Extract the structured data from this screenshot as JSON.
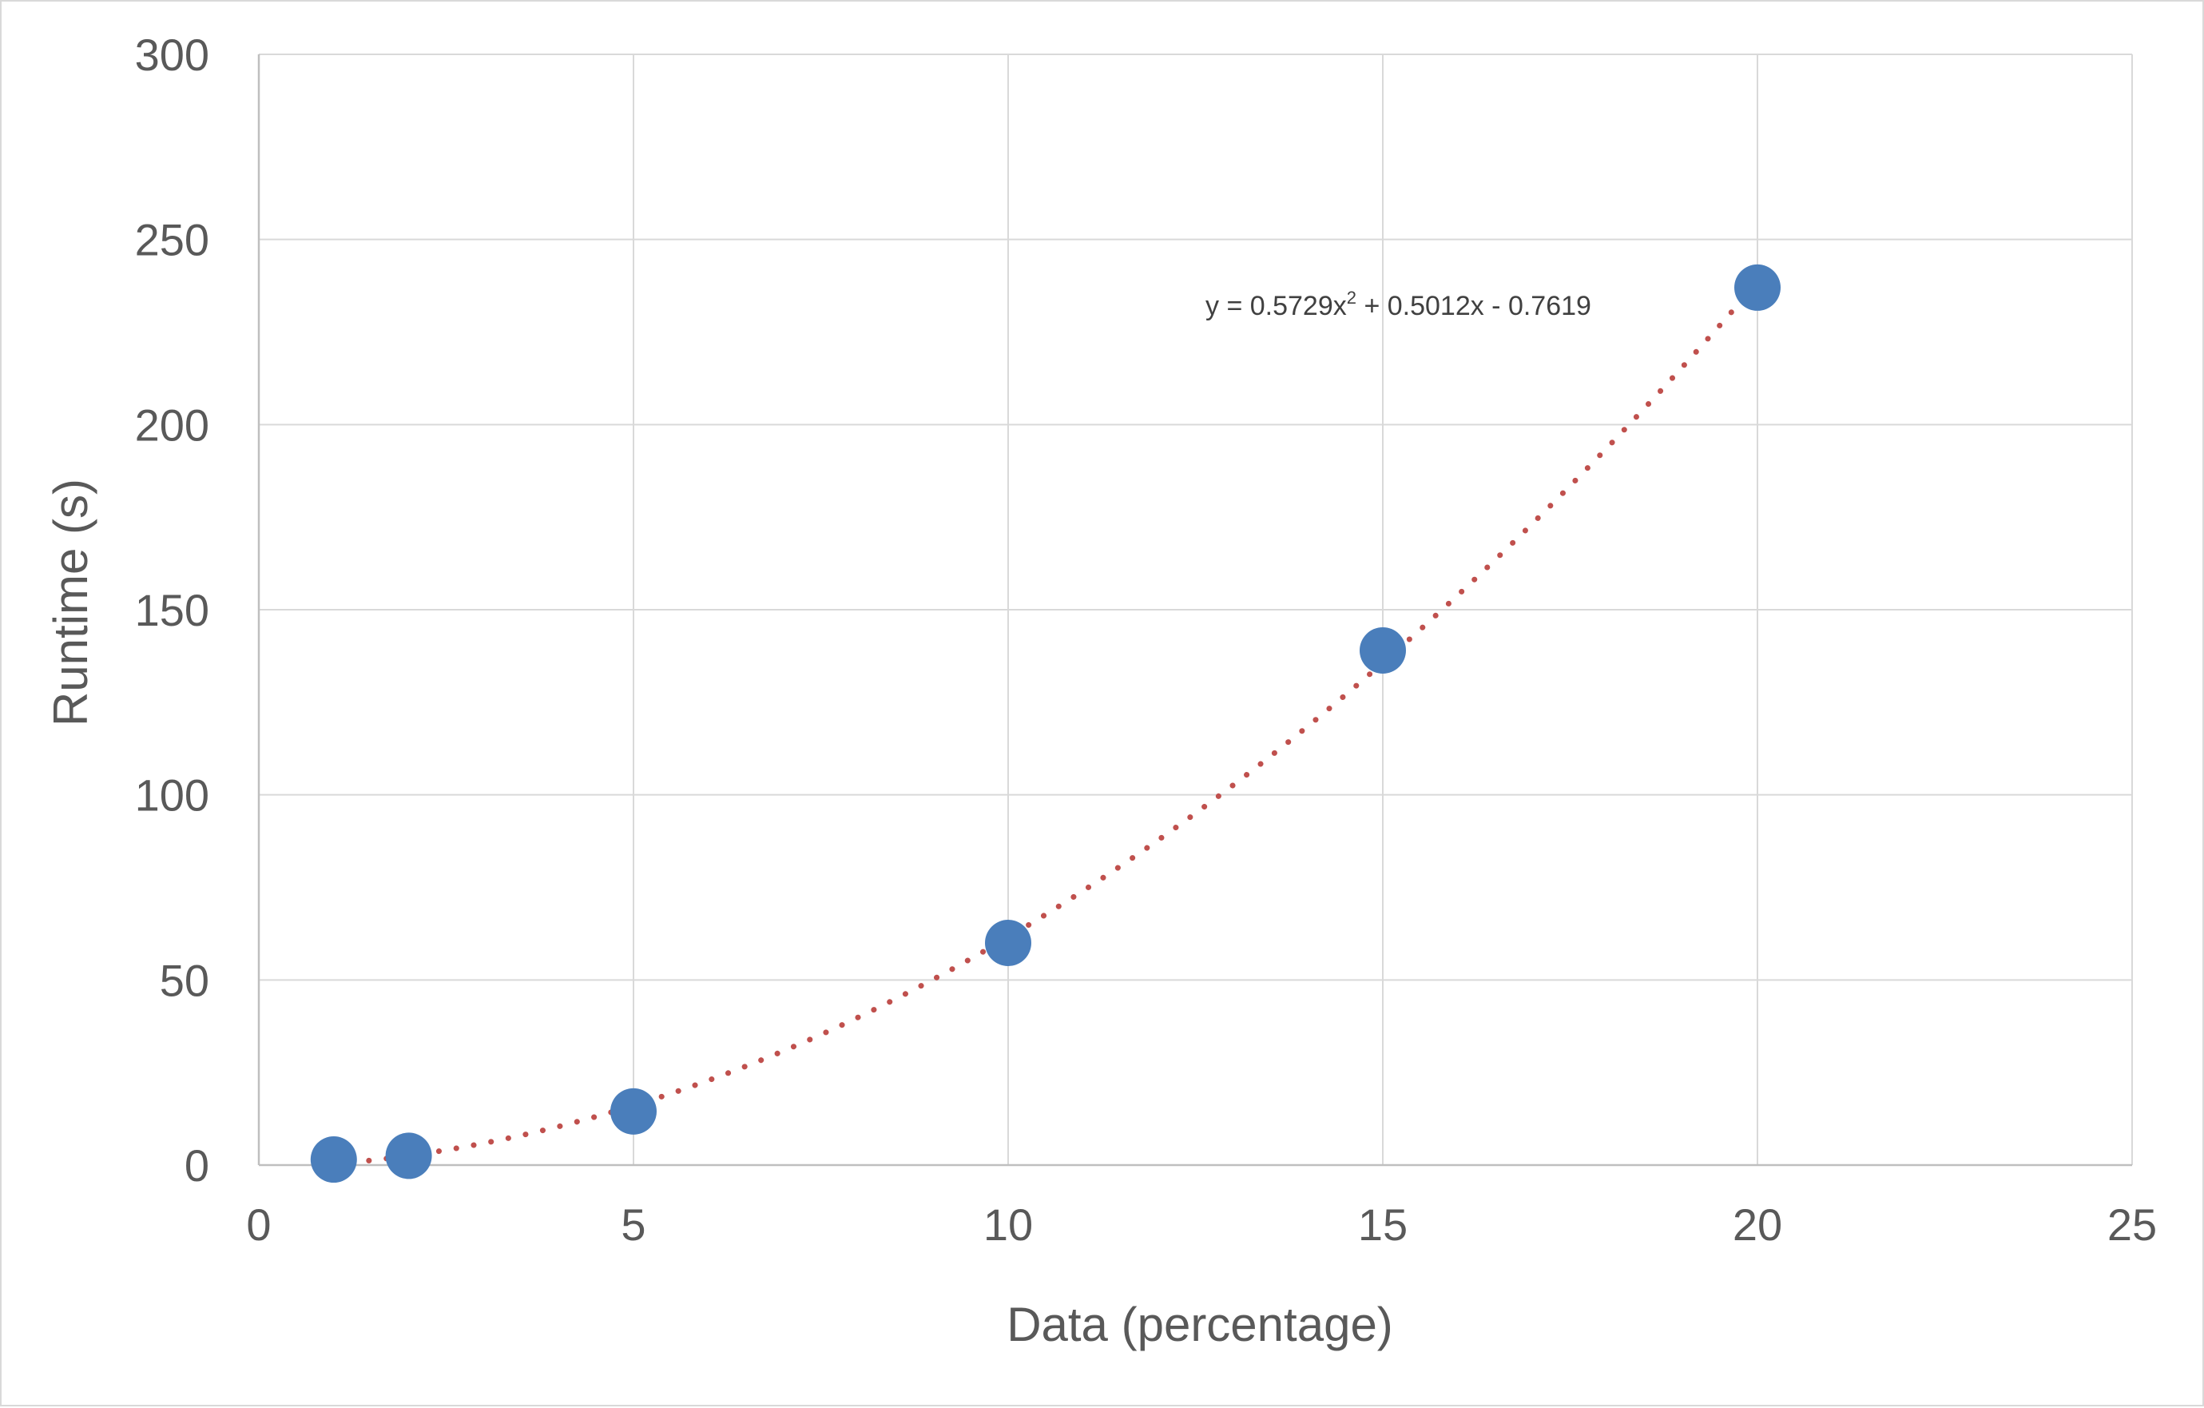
{
  "chart_data": {
    "type": "scatter",
    "title": "",
    "xlabel": "Data (percentage)",
    "ylabel": "Runtime (s)",
    "xlim": [
      0,
      25
    ],
    "ylim": [
      0,
      300
    ],
    "xticks": [
      0,
      5,
      10,
      15,
      20,
      25
    ],
    "yticks": [
      0,
      50,
      100,
      150,
      200,
      250,
      300
    ],
    "grid": true,
    "legend": "none",
    "series": [
      {
        "points": [
          {
            "x": 1,
            "y": 1.5
          },
          {
            "x": 2,
            "y": 2.5
          },
          {
            "x": 5,
            "y": 14.5
          },
          {
            "x": 10,
            "y": 60
          },
          {
            "x": 15,
            "y": 139
          },
          {
            "x": 20,
            "y": 237
          }
        ],
        "color": "#4a7ebb"
      }
    ],
    "trendline": {
      "type": "polynomial",
      "order": 2,
      "coefficients": {
        "a": 0.5729,
        "b": 0.5012,
        "c": -0.7619
      },
      "x_range": [
        1,
        20
      ],
      "color": "#c0504d",
      "style": "dotted",
      "equation_label": {
        "lhs": "y = 0.5729x",
        "power": "2",
        "rhs": " + 0.5012x - 0.7619"
      }
    }
  }
}
